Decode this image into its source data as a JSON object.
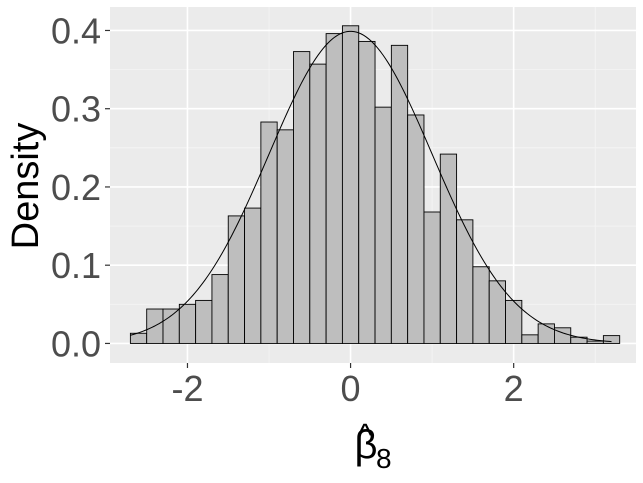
{
  "chart_data": {
    "type": "bar",
    "subtype": "histogram-with-density-curve",
    "ylabel": "Density",
    "xlabel": {
      "symbol": "β",
      "hat": "^",
      "subscript": "8"
    },
    "xlim": [
      -2.95,
      3.5
    ],
    "ylim": [
      -0.025,
      0.43
    ],
    "x_ticks": [
      -2,
      0,
      2
    ],
    "x_tick_labels": [
      "-2",
      "0",
      "2"
    ],
    "y_ticks": [
      0.0,
      0.1,
      0.2,
      0.3,
      0.4
    ],
    "y_tick_labels": [
      "0.0",
      "0.1",
      "0.2",
      "0.3",
      "0.4"
    ],
    "grid": true,
    "bin_width": 0.2,
    "bin_start": -2.7,
    "bins": [
      {
        "x0": -2.7,
        "x1": -2.5,
        "density": 0.013
      },
      {
        "x0": -2.5,
        "x1": -2.3,
        "density": 0.044
      },
      {
        "x0": -2.3,
        "x1": -2.1,
        "density": 0.044
      },
      {
        "x0": -2.1,
        "x1": -1.9,
        "density": 0.05
      },
      {
        "x0": -1.9,
        "x1": -1.7,
        "density": 0.055
      },
      {
        "x0": -1.7,
        "x1": -1.5,
        "density": 0.088
      },
      {
        "x0": -1.5,
        "x1": -1.3,
        "density": 0.163
      },
      {
        "x0": -1.3,
        "x1": -1.1,
        "density": 0.173
      },
      {
        "x0": -1.1,
        "x1": -0.9,
        "density": 0.283
      },
      {
        "x0": -0.9,
        "x1": -0.7,
        "density": 0.273
      },
      {
        "x0": -0.7,
        "x1": -0.5,
        "density": 0.373
      },
      {
        "x0": -0.5,
        "x1": -0.3,
        "density": 0.357
      },
      {
        "x0": -0.3,
        "x1": -0.1,
        "density": 0.396
      },
      {
        "x0": -0.1,
        "x1": 0.1,
        "density": 0.406
      },
      {
        "x0": 0.1,
        "x1": 0.3,
        "density": 0.386
      },
      {
        "x0": 0.3,
        "x1": 0.5,
        "density": 0.302
      },
      {
        "x0": 0.5,
        "x1": 0.7,
        "density": 0.381
      },
      {
        "x0": 0.7,
        "x1": 0.9,
        "density": 0.292
      },
      {
        "x0": 0.9,
        "x1": 1.1,
        "density": 0.168
      },
      {
        "x0": 1.1,
        "x1": 1.3,
        "density": 0.242
      },
      {
        "x0": 1.3,
        "x1": 1.5,
        "density": 0.158
      },
      {
        "x0": 1.5,
        "x1": 1.7,
        "density": 0.098
      },
      {
        "x0": 1.7,
        "x1": 1.9,
        "density": 0.08
      },
      {
        "x0": 1.9,
        "x1": 2.1,
        "density": 0.055
      },
      {
        "x0": 2.1,
        "x1": 2.3,
        "density": 0.011
      },
      {
        "x0": 2.3,
        "x1": 2.5,
        "density": 0.025
      },
      {
        "x0": 2.5,
        "x1": 2.7,
        "density": 0.02
      },
      {
        "x0": 2.7,
        "x1": 2.9,
        "density": 0.008
      },
      {
        "x0": 2.9,
        "x1": 3.1,
        "density": 0.003
      },
      {
        "x0": 3.1,
        "x1": 3.3,
        "density": 0.01
      }
    ],
    "curve": {
      "name": "normal density",
      "mean": 0,
      "sd": 1,
      "x_range": [
        -2.7,
        3.2
      ]
    },
    "colors": {
      "panel_background": "#ebebeb",
      "grid_major": "#ffffff",
      "grid_minor": "#f5f5f5",
      "bar_fill": "#bebebe",
      "bar_stroke": "#000000",
      "curve": "#000000",
      "tick_label": "#4d4d4d",
      "axis_title": "#000000"
    }
  }
}
